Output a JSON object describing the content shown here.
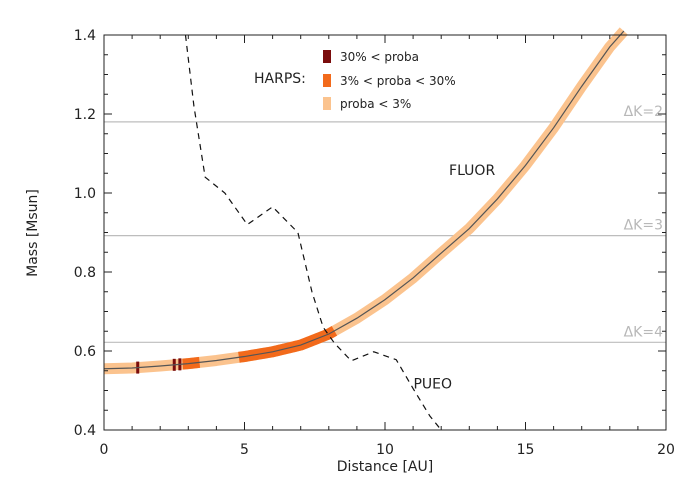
{
  "chart_data": {
    "type": "line",
    "xlabel": "Distance [AU]",
    "ylabel": "Mass [Msun]",
    "xlim": [
      0,
      20
    ],
    "ylim": [
      0.4,
      1.4
    ],
    "xticks": [
      0,
      5,
      10,
      15,
      20
    ],
    "yticks": [
      0.4,
      0.6,
      0.8,
      1.0,
      1.2,
      1.4
    ],
    "xtick_labels": [
      "0",
      "5",
      "10",
      "15",
      "20"
    ],
    "ytick_labels": [
      "0.4",
      "0.6",
      "0.8",
      "1.0",
      "1.2",
      "1.4"
    ],
    "grid": false,
    "colors": {
      "band_light": "#fbc38e",
      "band_mid": "#f26a1b",
      "band_dark": "#7a0c0c",
      "curve": "#555555",
      "ref_line": "#bdbdbd",
      "dk_text": "#b8b8b8"
    },
    "series": [
      {
        "name": "FLUOR",
        "style": "solid",
        "x": [
          0,
          1,
          2,
          3,
          4,
          5,
          6,
          7,
          8,
          9,
          10,
          11,
          12,
          13,
          14,
          15,
          16,
          17,
          18,
          18.5
        ],
        "y": [
          0.555,
          0.557,
          0.562,
          0.568,
          0.576,
          0.586,
          0.598,
          0.615,
          0.643,
          0.683,
          0.73,
          0.785,
          0.848,
          0.91,
          0.985,
          1.07,
          1.165,
          1.27,
          1.37,
          1.41
        ]
      },
      {
        "name": "PUEO",
        "style": "dashed",
        "x": [
          2.9,
          3.2,
          3.6,
          4.3,
          5.1,
          6.0,
          6.9,
          7.4,
          7.8,
          8.2,
          8.8,
          9.6,
          10.4,
          11.0,
          11.6,
          12.0
        ],
        "y": [
          1.4,
          1.22,
          1.04,
          1.0,
          0.92,
          0.965,
          0.9,
          0.75,
          0.66,
          0.62,
          0.575,
          0.598,
          0.578,
          0.505,
          0.435,
          0.4
        ]
      }
    ],
    "reference_lines": [
      {
        "label": "ΔK=2",
        "y": 1.18
      },
      {
        "label": "ΔK=3",
        "y": 0.892
      },
      {
        "label": "ΔK=4",
        "y": 0.622
      }
    ],
    "highlight_segments": [
      {
        "category": "mid",
        "x0": 2.8,
        "x1": 3.4
      },
      {
        "category": "mid",
        "x0": 4.8,
        "x1": 8.2
      },
      {
        "category": "dark",
        "x0": 1.15,
        "x1": 1.25
      },
      {
        "category": "dark",
        "x0": 2.45,
        "x1": 2.55
      },
      {
        "category": "dark",
        "x0": 2.65,
        "x1": 2.75
      }
    ],
    "annotations": [
      {
        "text": "FLUOR",
        "x": 13.1,
        "y": 1.045
      },
      {
        "text": "PUEO",
        "x": 11.7,
        "y": 0.505
      }
    ],
    "legend": {
      "title": "HARPS:",
      "placement": "top-center",
      "entries": [
        {
          "label": "30% < proba",
          "color": "#7a0c0c"
        },
        {
          "label": "3% < proba < 30%",
          "color": "#f26a1b"
        },
        {
          "label": "proba < 3%",
          "color": "#fbc38e"
        }
      ]
    }
  }
}
